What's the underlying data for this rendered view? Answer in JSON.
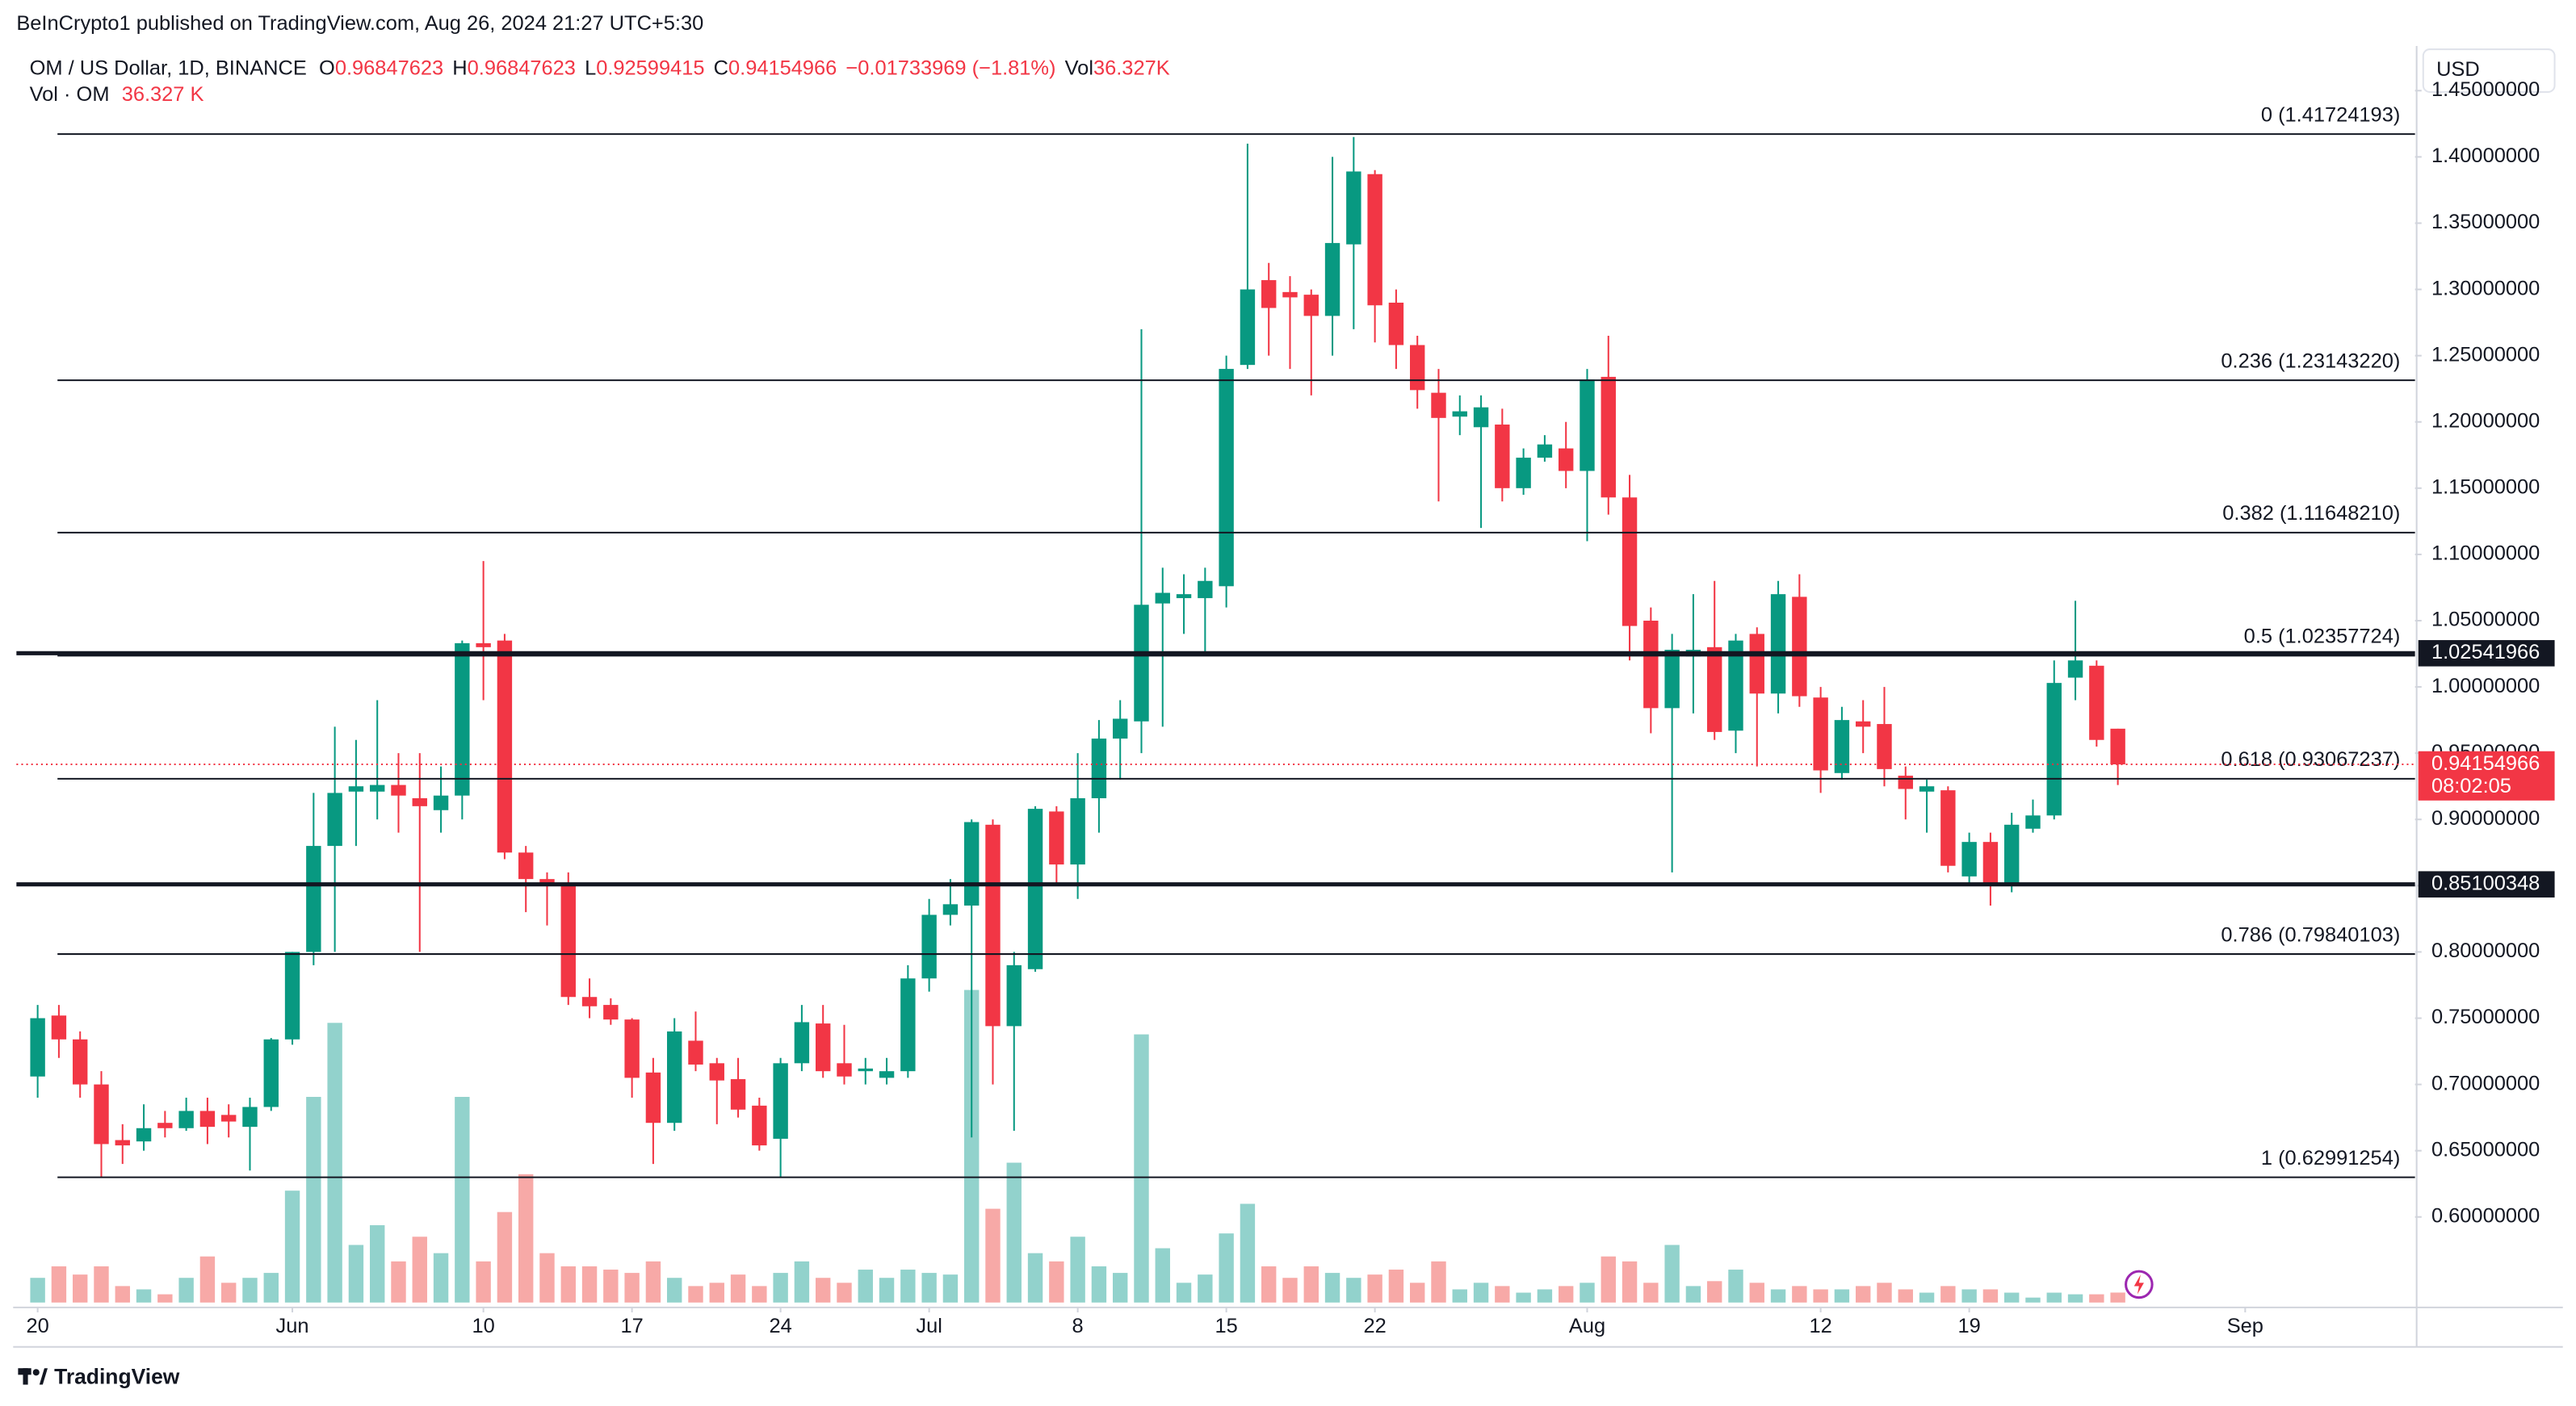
{
  "header": {
    "published": "BeInCrypto1 published on TradingView.com, Aug 26, 2024 21:27 UTC+5:30",
    "symbol": "OM / US Dollar, 1D, BINANCE",
    "o": "O",
    "h": "H",
    "l": "L",
    "c": "C",
    "change": "−0.01733969 (−1.81%)",
    "vol": "Vol",
    "volume": "36.327K",
    "vol_title": "Vol · OM",
    "vol_value": "36.327 K"
  },
  "footer": {
    "brand": "TradingView"
  },
  "chart_data": {
    "type": "candlestick",
    "currency": "USD",
    "countdown": "08:02:05",
    "up_color": "#089981",
    "down_color": "#f23645",
    "up_volume_color": "#92d2cc",
    "down_volume_color": "#f7a9a7",
    "grid": false,
    "x": [
      "2024-05-20",
      "2024-05-21",
      "2024-05-22",
      "2024-05-23",
      "2024-05-24",
      "2024-05-25",
      "2024-05-26",
      "2024-05-27",
      "2024-05-28",
      "2024-05-29",
      "2024-05-30",
      "2024-05-31",
      "2024-06-01",
      "2024-06-02",
      "2024-06-03",
      "2024-06-04",
      "2024-06-05",
      "2024-06-06",
      "2024-06-07",
      "2024-06-08",
      "2024-06-09",
      "2024-06-10",
      "2024-06-11",
      "2024-06-12",
      "2024-06-13",
      "2024-06-14",
      "2024-06-15",
      "2024-06-16",
      "2024-06-17",
      "2024-06-18",
      "2024-06-19",
      "2024-06-20",
      "2024-06-21",
      "2024-06-22",
      "2024-06-23",
      "2024-06-24",
      "2024-06-25",
      "2024-06-26",
      "2024-06-27",
      "2024-06-28",
      "2024-06-29",
      "2024-06-30",
      "2024-07-01",
      "2024-07-02",
      "2024-07-03",
      "2024-07-04",
      "2024-07-05",
      "2024-07-06",
      "2024-07-07",
      "2024-07-08",
      "2024-07-09",
      "2024-07-10",
      "2024-07-11",
      "2024-07-12",
      "2024-07-13",
      "2024-07-14",
      "2024-07-15",
      "2024-07-16",
      "2024-07-17",
      "2024-07-18",
      "2024-07-19",
      "2024-07-20",
      "2024-07-21",
      "2024-07-22",
      "2024-07-23",
      "2024-07-24",
      "2024-07-25",
      "2024-07-26",
      "2024-07-27",
      "2024-07-28",
      "2024-07-29",
      "2024-07-30",
      "2024-07-31",
      "2024-08-01",
      "2024-08-02",
      "2024-08-03",
      "2024-08-04",
      "2024-08-05",
      "2024-08-06",
      "2024-08-07",
      "2024-08-08",
      "2024-08-09",
      "2024-08-10",
      "2024-08-11",
      "2024-08-12",
      "2024-08-13",
      "2024-08-14",
      "2024-08-15",
      "2024-08-16",
      "2024-08-17",
      "2024-08-18",
      "2024-08-19",
      "2024-08-20",
      "2024-08-21",
      "2024-08-22",
      "2024-08-23",
      "2024-08-24",
      "2024-08-25",
      "2024-08-26"
    ],
    "open": [
      0.706,
      0.752,
      0.734,
      0.7,
      0.658,
      0.657,
      0.671,
      0.667,
      0.68,
      0.677,
      0.668,
      0.683,
      0.734,
      0.8,
      0.88,
      0.921,
      0.921,
      0.926,
      0.916,
      0.907,
      0.918,
      1.033,
      1.035,
      0.875,
      0.855,
      0.851,
      0.766,
      0.76,
      0.749,
      0.709,
      0.671,
      0.733,
      0.716,
      0.704,
      0.684,
      0.659,
      0.716,
      0.746,
      0.716,
      0.71,
      0.705,
      0.71,
      0.78,
      0.828,
      0.835,
      0.896,
      0.744,
      0.787,
      0.906,
      0.866,
      0.916,
      0.961,
      0.974,
      1.063,
      1.067,
      1.067,
      1.076,
      1.243,
      1.307,
      1.298,
      1.296,
      1.28,
      1.334,
      1.387,
      1.29,
      1.258,
      1.222,
      1.204,
      1.196,
      1.198,
      1.15,
      1.173,
      1.18,
      1.163,
      1.234,
      1.143,
      1.05,
      0.984,
      1.023,
      1.03,
      0.967,
      1.04,
      0.995,
      1.068,
      0.992,
      0.935,
      0.974,
      0.972,
      0.933,
      0.921,
      0.922,
      0.857,
      0.883,
      0.852,
      0.893,
      0.903,
      1.007,
      1.016,
      0.96847623
    ],
    "high": [
      0.76,
      0.76,
      0.74,
      0.71,
      0.67,
      0.685,
      0.68,
      0.69,
      0.69,
      0.685,
      0.69,
      0.735,
      0.8,
      0.92,
      0.97,
      0.96,
      0.99,
      0.95,
      0.95,
      0.94,
      1.035,
      1.095,
      1.04,
      0.88,
      0.86,
      0.86,
      0.78,
      0.765,
      0.75,
      0.72,
      0.75,
      0.755,
      0.72,
      0.72,
      0.69,
      0.72,
      0.76,
      0.76,
      0.745,
      0.72,
      0.72,
      0.79,
      0.84,
      0.855,
      0.9,
      0.9,
      0.8,
      0.91,
      0.91,
      0.95,
      0.975,
      0.99,
      1.27,
      1.09,
      1.085,
      1.09,
      1.25,
      1.41,
      1.32,
      1.31,
      1.3,
      1.4,
      1.415,
      1.39,
      1.3,
      1.265,
      1.24,
      1.22,
      1.22,
      1.21,
      1.18,
      1.19,
      1.2,
      1.24,
      1.265,
      1.16,
      1.06,
      1.04,
      1.07,
      1.08,
      1.04,
      1.045,
      1.08,
      1.085,
      1.0,
      0.985,
      0.99,
      1.0,
      0.94,
      0.93,
      0.925,
      0.89,
      0.89,
      0.905,
      0.915,
      1.02,
      1.065,
      1.02,
      0.96847623
    ],
    "low": [
      0.69,
      0.72,
      0.69,
      0.63,
      0.64,
      0.65,
      0.66,
      0.665,
      0.655,
      0.66,
      0.635,
      0.68,
      0.73,
      0.79,
      0.8,
      0.88,
      0.9,
      0.89,
      0.8,
      0.89,
      0.9,
      0.99,
      0.87,
      0.83,
      0.82,
      0.76,
      0.75,
      0.745,
      0.69,
      0.64,
      0.665,
      0.71,
      0.67,
      0.675,
      0.65,
      0.63,
      0.71,
      0.705,
      0.7,
      0.7,
      0.7,
      0.705,
      0.77,
      0.82,
      0.66,
      0.7,
      0.665,
      0.785,
      0.85,
      0.84,
      0.89,
      0.93,
      0.95,
      0.97,
      1.04,
      1.025,
      1.06,
      1.24,
      1.25,
      1.24,
      1.22,
      1.25,
      1.27,
      1.26,
      1.24,
      1.21,
      1.14,
      1.19,
      1.12,
      1.14,
      1.145,
      1.17,
      1.15,
      1.11,
      1.13,
      1.02,
      0.965,
      0.86,
      0.98,
      0.96,
      0.95,
      0.94,
      0.98,
      0.985,
      0.92,
      0.93,
      0.95,
      0.925,
      0.9,
      0.89,
      0.86,
      0.85,
      0.835,
      0.845,
      0.89,
      0.9,
      0.99,
      0.955,
      0.92599415
    ],
    "close": [
      0.75,
      0.734,
      0.7,
      0.655,
      0.654,
      0.667,
      0.667,
      0.68,
      0.668,
      0.672,
      0.683,
      0.734,
      0.8,
      0.88,
      0.92,
      0.925,
      0.926,
      0.918,
      0.91,
      0.918,
      1.033,
      1.03,
      0.875,
      0.855,
      0.851,
      0.766,
      0.759,
      0.749,
      0.705,
      0.671,
      0.74,
      0.715,
      0.703,
      0.681,
      0.654,
      0.716,
      0.747,
      0.71,
      0.706,
      0.712,
      0.71,
      0.78,
      0.828,
      0.836,
      0.898,
      0.744,
      0.79,
      0.908,
      0.866,
      0.916,
      0.961,
      0.976,
      1.062,
      1.071,
      1.07,
      1.08,
      1.24,
      1.3,
      1.286,
      1.294,
      1.28,
      1.335,
      1.389,
      1.288,
      1.258,
      1.224,
      1.203,
      1.208,
      1.211,
      1.15,
      1.173,
      1.183,
      1.163,
      1.232,
      1.143,
      1.046,
      0.984,
      1.028,
      1.028,
      0.966,
      1.035,
      0.995,
      1.07,
      0.993,
      0.937,
      0.975,
      0.97,
      0.938,
      0.923,
      0.925,
      0.865,
      0.883,
      0.852,
      0.896,
      0.903,
      1.003,
      1.02,
      0.96,
      0.94154966
    ],
    "volume": [
      90,
      132,
      102,
      132,
      60,
      48,
      30,
      90,
      168,
      72,
      90,
      108,
      408,
      750,
      1020,
      210,
      282,
      150,
      240,
      180,
      750,
      150,
      330,
      468,
      180,
      132,
      132,
      120,
      108,
      150,
      90,
      60,
      72,
      102,
      60,
      108,
      150,
      90,
      72,
      120,
      90,
      120,
      108,
      102,
      1140,
      342,
      510,
      180,
      150,
      240,
      132,
      108,
      978,
      198,
      72,
      102,
      252,
      360,
      132,
      90,
      132,
      108,
      90,
      102,
      120,
      72,
      150,
      48,
      72,
      60,
      36,
      48,
      60,
      72,
      168,
      150,
      72,
      210,
      60,
      78,
      120,
      72,
      48,
      60,
      48,
      48,
      60,
      72,
      48,
      36,
      60,
      48,
      48,
      36,
      18,
      36,
      30,
      30,
      36.327
    ],
    "volume_lim": [
      0,
      1300
    ],
    "xlim": [
      "2024-05-19",
      "2024-09-09"
    ],
    "xticks": [
      {
        "value": "2024-05-20",
        "label": "20"
      },
      {
        "value": "2024-06-01",
        "label": "Jun"
      },
      {
        "value": "2024-06-10",
        "label": "10"
      },
      {
        "value": "2024-06-17",
        "label": "17"
      },
      {
        "value": "2024-06-24",
        "label": "24"
      },
      {
        "value": "2024-07-01",
        "label": "Jul"
      },
      {
        "value": "2024-07-08",
        "label": "8"
      },
      {
        "value": "2024-07-15",
        "label": "15"
      },
      {
        "value": "2024-07-22",
        "label": "22"
      },
      {
        "value": "2024-08-01",
        "label": "Aug"
      },
      {
        "value": "2024-08-12",
        "label": "12"
      },
      {
        "value": "2024-08-19",
        "label": "19"
      },
      {
        "value": "2024-09-01",
        "label": "Sep"
      }
    ],
    "ylim": [
      0.5317,
      1.4837
    ],
    "yticks": [
      {
        "value": 1.45,
        "label": "1.45000000"
      },
      {
        "value": 1.4,
        "label": "1.40000000"
      },
      {
        "value": 1.35,
        "label": "1.35000000"
      },
      {
        "value": 1.3,
        "label": "1.30000000"
      },
      {
        "value": 1.25,
        "label": "1.25000000"
      },
      {
        "value": 1.2,
        "label": "1.20000000"
      },
      {
        "value": 1.15,
        "label": "1.15000000"
      },
      {
        "value": 1.1,
        "label": "1.10000000"
      },
      {
        "value": 1.05,
        "label": "1.05000000"
      },
      {
        "value": 1.0,
        "label": "1.00000000"
      },
      {
        "value": 0.95,
        "label": "0.95000000"
      },
      {
        "value": 0.9,
        "label": "0.90000000"
      },
      {
        "value": 0.85,
        "label": "0.85000000"
      },
      {
        "value": 0.8,
        "label": "0.80000000"
      },
      {
        "value": 0.75,
        "label": "0.75000000"
      },
      {
        "value": 0.7,
        "label": "0.70000000"
      },
      {
        "value": 0.65,
        "label": "0.65000000"
      },
      {
        "value": 0.6,
        "label": "0.60000000"
      }
    ],
    "fib_levels": [
      {
        "value": 1.41724193,
        "label": "0 (1.41724193)"
      },
      {
        "value": 1.2314322,
        "label": "0.236 (1.23143220)"
      },
      {
        "value": 1.1164821,
        "label": "0.382 (1.11648210)"
      },
      {
        "value": 1.02357724,
        "label": "0.5 (1.02357724)"
      },
      {
        "value": 0.93067237,
        "label": "0.618 (0.93067237)"
      },
      {
        "value": 0.79840103,
        "label": "0.786 (0.79840103)"
      },
      {
        "value": 0.62991254,
        "label": "1 (0.62991254)"
      }
    ],
    "price_lines": [
      1.02541966,
      0.85100348
    ]
  }
}
